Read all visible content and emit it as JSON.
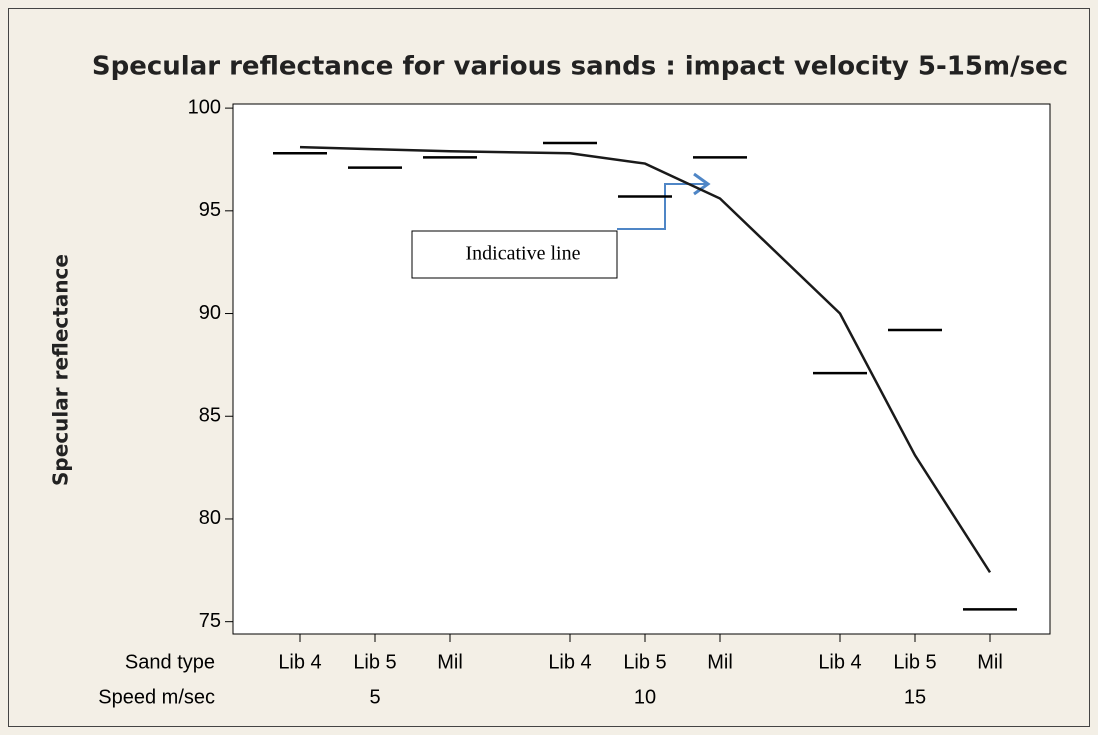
{
  "chart_data": {
    "type": "line",
    "title": "Specular reflectance for various sands : impact velocity 5-15m/sec",
    "y_label": "Specular reflectance",
    "row_labels": [
      "Sand type",
      "Speed m/sec"
    ],
    "categories": [
      "Lib 4",
      "Lib 5",
      "Mil",
      "Lib 4",
      "Lib 5",
      "Mil",
      "Lib 4",
      "Lib 5",
      "Mil"
    ],
    "groups": [
      "5",
      "10",
      "15"
    ],
    "series": [
      {
        "color": "#000000",
        "marker": "dash",
        "values": [
          97.8,
          97.1,
          97.6,
          98.3,
          95.7,
          97.6,
          87.1,
          89.2,
          75.6
        ]
      },
      {
        "color": "#1a1a1a",
        "marker": "none",
        "values": [
          98.1,
          98.0,
          97.9,
          97.8,
          97.3,
          95.6,
          90.0,
          83.1,
          77.4
        ]
      }
    ],
    "annotation": "Indicative line",
    "ylim": [
      74.4,
      100.2
    ],
    "yticks": [
      75,
      80,
      85,
      90,
      95,
      100
    ]
  }
}
